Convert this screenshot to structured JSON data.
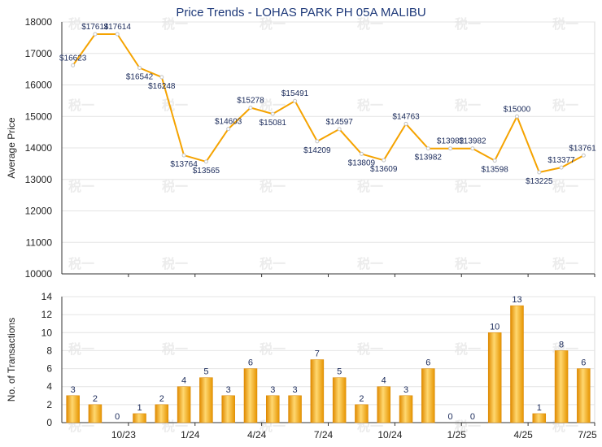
{
  "title": "Price Trends - LOHAS PARK PH 05A MALIBU",
  "chart_data": [
    {
      "type": "line",
      "ylabel": "Average Price",
      "ylim": [
        10000,
        18000
      ],
      "yticks": [
        "10000",
        "11000",
        "12000",
        "13000",
        "14000",
        "15000",
        "16000",
        "17000",
        "18000"
      ],
      "color": "#f5a300",
      "x_index": [
        0,
        1,
        2,
        3,
        4,
        5,
        6,
        7,
        8,
        9,
        10,
        11,
        12,
        13,
        14,
        15,
        16,
        17,
        18,
        19,
        20,
        21,
        22,
        23
      ],
      "values": [
        16623,
        17614,
        17614,
        16542,
        16248,
        13764,
        13565,
        14603,
        15278,
        15081,
        15491,
        14209,
        14597,
        13809,
        13609,
        14763,
        13982,
        13982,
        13982,
        13598,
        15000,
        13225,
        13377,
        13761
      ],
      "labels": [
        "$16623",
        "$17614",
        "$17614",
        "$16542",
        "$16248",
        "$13764",
        "$13565",
        "$14603",
        "$15278",
        "$15081",
        "$15491",
        "$14209",
        "$14597",
        "$13809",
        "$13609",
        "$14763",
        "$13982",
        "$13982",
        "$13982",
        "$13598",
        "$15000",
        "$13225",
        "$13377",
        "$13761"
      ]
    },
    {
      "type": "bar",
      "ylabel": "No. of Transactions",
      "ylim": [
        0,
        14
      ],
      "yticks": [
        "0",
        "2",
        "4",
        "6",
        "8",
        "10",
        "12",
        "14"
      ],
      "color": "#f5a300",
      "values": [
        3,
        2,
        0,
        1,
        2,
        4,
        5,
        3,
        6,
        3,
        3,
        7,
        5,
        2,
        4,
        3,
        6,
        0,
        0,
        10,
        13,
        1,
        8,
        6
      ],
      "xtick_labels": [
        "10/23",
        "1/24",
        "4/24",
        "7/24",
        "10/24",
        "1/25",
        "4/25",
        "7/25"
      ]
    }
  ],
  "watermark": "税一"
}
